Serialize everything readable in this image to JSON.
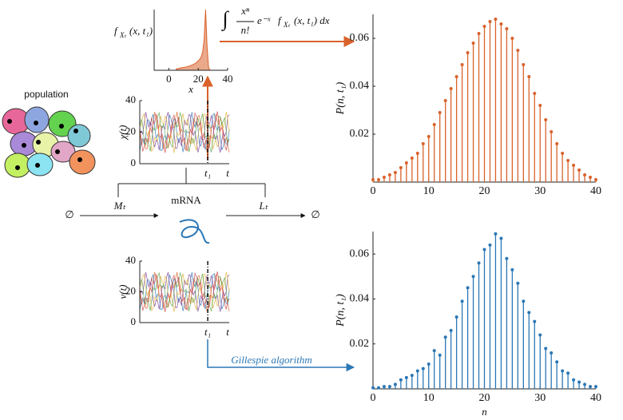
{
  "figure": {
    "population_label": "population",
    "mrna_label": "mRNA",
    "production_label": "Mₜ",
    "degradation_label": "Lₜ",
    "source_symbol": "∅",
    "sink_symbol": "∅",
    "method_label": "Gillespie algorithm",
    "formula": {
      "integral": "∫",
      "numerator": "xⁿ",
      "denominator": "n!",
      "exponential": "e⁻ˣ",
      "f": "f",
      "subscript": "Xₜ",
      "argument": "(x, t₁) dx"
    }
  },
  "chart_data": [
    {
      "type": "area",
      "ylabel_parts": [
        "f",
        "Xₜ",
        "(x, t₁)"
      ],
      "xlabel": "x",
      "color": "#d9622b",
      "xlim": [
        -10,
        40
      ],
      "xticks": [
        0,
        20,
        40
      ],
      "ylim": [
        0,
        1
      ],
      "x": [
        5,
        8,
        11,
        14,
        17,
        19,
        21,
        22,
        23,
        24,
        25,
        26,
        27,
        28
      ],
      "values": [
        0.02,
        0.04,
        0.05,
        0.07,
        0.1,
        0.13,
        0.18,
        0.22,
        0.3,
        0.5,
        1,
        0.4,
        0.05,
        0
      ]
    },
    {
      "type": "trajectory",
      "ylabel": "χ(t)",
      "ylim": [
        0,
        40
      ],
      "yticks": [
        0,
        20,
        40
      ],
      "xtick_labels": [
        "t₁",
        "t"
      ]
    },
    {
      "type": "trajectory",
      "ylabel": "v(t)",
      "ylim": [
        0,
        40
      ],
      "yticks": [
        0,
        20,
        40
      ],
      "xtick_labels": [
        "t₁",
        "t"
      ]
    },
    {
      "type": "stem",
      "ylabel": "P(n, t₁)",
      "color": "#d9622b",
      "xlim": [
        0,
        40
      ],
      "xticks": [
        0,
        10,
        20,
        30,
        40
      ],
      "ylim": [
        0,
        0.07
      ],
      "yticks": [
        0.02,
        0.04,
        0.06
      ],
      "x": [
        0,
        1,
        2,
        3,
        4,
        5,
        6,
        7,
        8,
        9,
        10,
        11,
        12,
        13,
        14,
        15,
        16,
        17,
        18,
        19,
        20,
        21,
        22,
        23,
        24,
        25,
        26,
        27,
        28,
        29,
        30,
        31,
        32,
        33,
        34,
        35,
        36,
        37,
        38,
        39,
        40
      ],
      "values": [
        0.001,
        0.001,
        0.002,
        0.003,
        0.004,
        0.006,
        0.008,
        0.01,
        0.012,
        0.016,
        0.019,
        0.024,
        0.029,
        0.034,
        0.039,
        0.044,
        0.049,
        0.054,
        0.058,
        0.062,
        0.065,
        0.067,
        0.068,
        0.066,
        0.064,
        0.06,
        0.055,
        0.049,
        0.044,
        0.037,
        0.032,
        0.026,
        0.021,
        0.016,
        0.012,
        0.009,
        0.007,
        0.005,
        0.003,
        0.002,
        0.001
      ]
    },
    {
      "type": "stem",
      "ylabel": "P(n, t₁)",
      "xlabel": "n",
      "color": "#2b77b5",
      "xlim": [
        0,
        40
      ],
      "xticks": [
        0,
        10,
        20,
        30,
        40
      ],
      "ylim": [
        0,
        0.07
      ],
      "yticks": [
        0.02,
        0.04,
        0.06
      ],
      "x": [
        0,
        1,
        2,
        3,
        4,
        5,
        6,
        7,
        8,
        9,
        10,
        11,
        12,
        13,
        14,
        15,
        16,
        17,
        18,
        19,
        20,
        21,
        22,
        23,
        24,
        25,
        26,
        27,
        28,
        29,
        30,
        31,
        32,
        33,
        34,
        35,
        36,
        37,
        38,
        39,
        40
      ],
      "values": [
        0.0005,
        0.0005,
        0.001,
        0.001,
        0.002,
        0.004,
        0.005,
        0.006,
        0.008,
        0.009,
        0.011,
        0.017,
        0.015,
        0.023,
        0.026,
        0.032,
        0.039,
        0.045,
        0.05,
        0.056,
        0.062,
        0.064,
        0.069,
        0.067,
        0.058,
        0.053,
        0.047,
        0.039,
        0.034,
        0.03,
        0.024,
        0.018,
        0.016,
        0.012,
        0.008,
        0.007,
        0.004,
        0.003,
        0.002,
        0.001,
        0.001
      ]
    }
  ]
}
